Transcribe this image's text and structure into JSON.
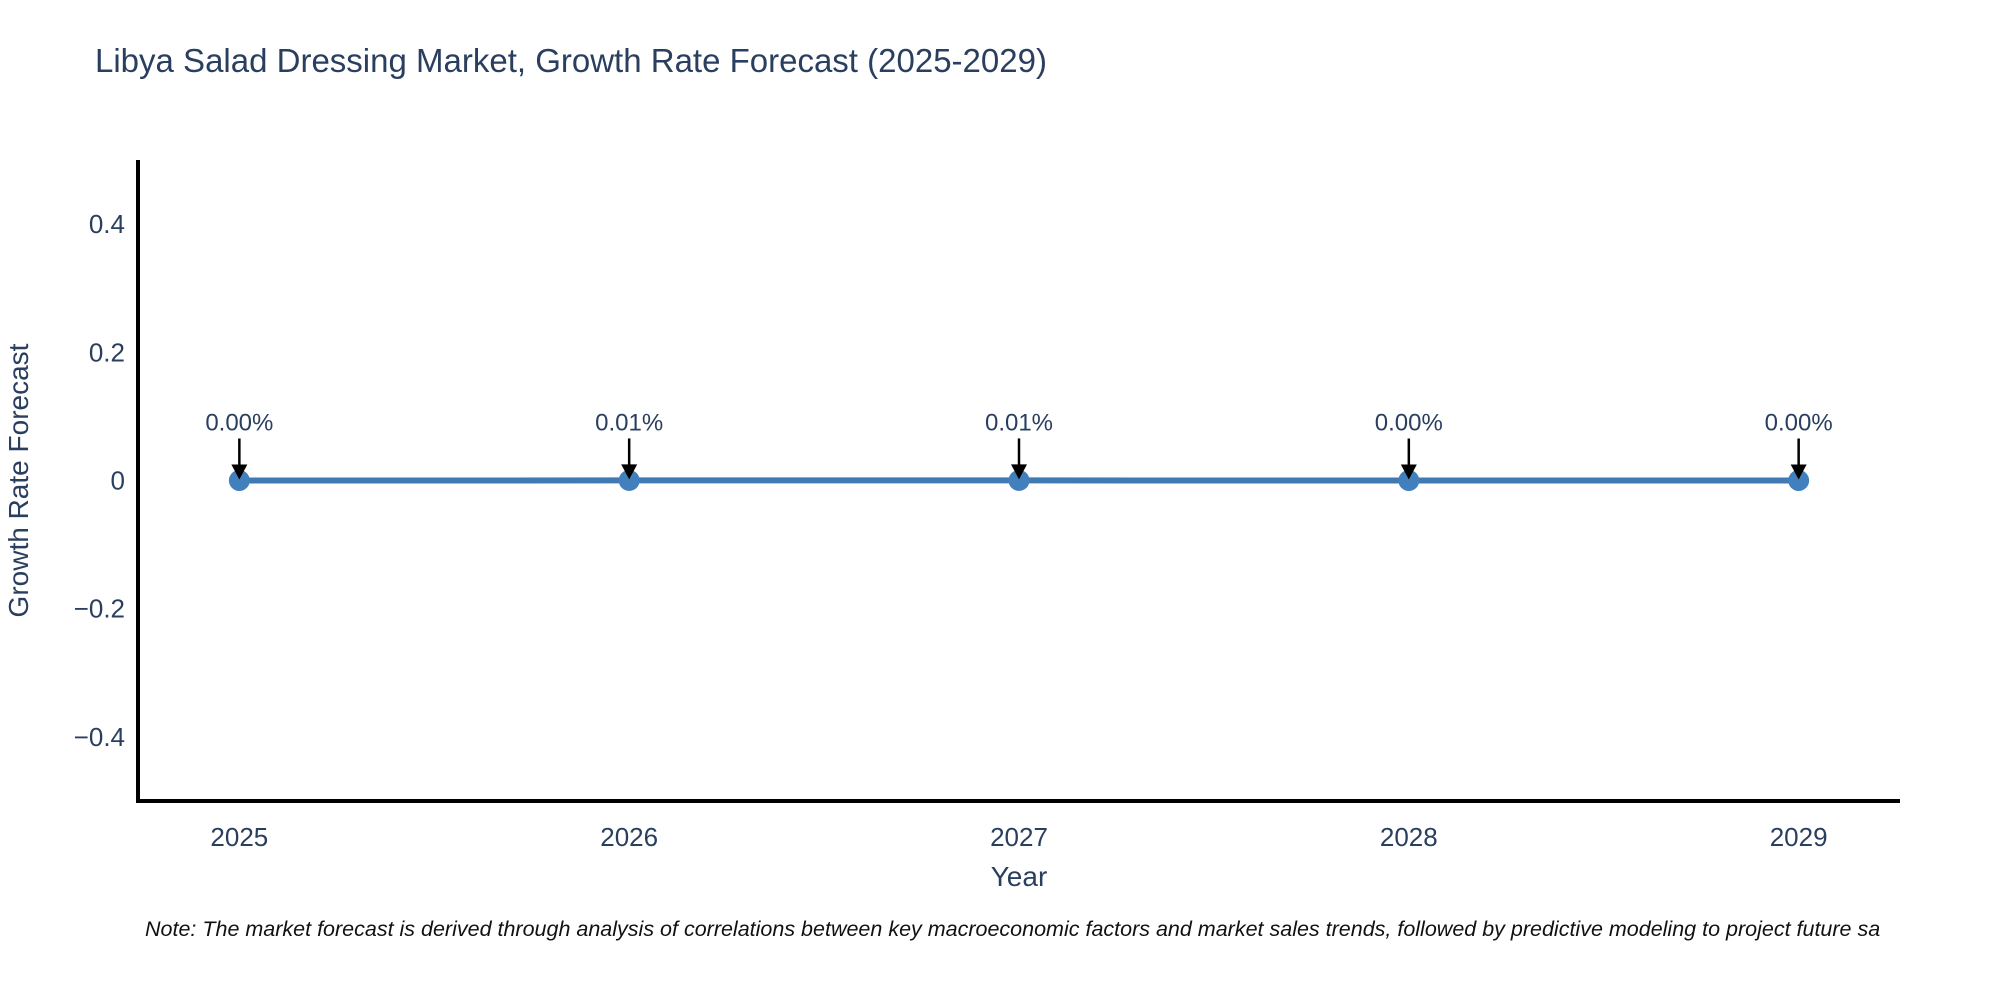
{
  "title": "Libya Salad Dressing Market, Growth Rate Forecast (2025-2029)",
  "note": "Note: The market forecast is derived through analysis of correlations between key macroeconomic factors and market sales trends, followed by predictive modeling to project future sa",
  "chart_data": {
    "type": "line",
    "title": "Libya Salad Dressing Market, Growth Rate Forecast (2025-2029)",
    "xlabel": "Year",
    "ylabel": "Growth Rate Forecast",
    "x": [
      2025,
      2026,
      2027,
      2028,
      2029
    ],
    "values": [
      0.0,
      0.0001,
      0.0001,
      0.0,
      0.0
    ],
    "point_labels": [
      "0.00%",
      "0.01%",
      "0.01%",
      "0.00%",
      "0.00%"
    ],
    "xticks": [
      "2025",
      "2026",
      "2027",
      "2028",
      "2029"
    ],
    "yticks": [
      0.4,
      0.2,
      0,
      -0.2,
      -0.4
    ],
    "ytick_labels": [
      "0.4",
      "0.2",
      "0",
      "−0.2",
      "−0.4"
    ],
    "xlim": [
      2024.74,
      2029.26
    ],
    "ylim": [
      -0.5,
      0.5
    ],
    "grid": false,
    "legend": false,
    "annotation_arrows": true,
    "colors": {
      "line": "#4179b2",
      "marker": "#4180bd",
      "arrow": "#000000",
      "text": "#2a3f5f",
      "axis": "#000000",
      "note_text": "#111111",
      "background": "#ffffff"
    }
  }
}
